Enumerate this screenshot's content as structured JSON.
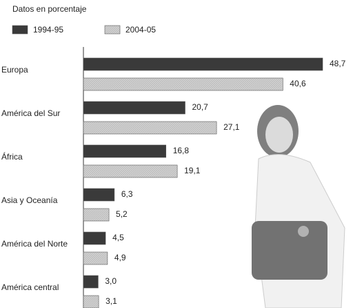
{
  "chart_data": {
    "type": "hbar",
    "subtitle": "Datos en porcentaje",
    "categories": [
      "Europa",
      "América del Sur",
      "África",
      "Asia y Oceanía",
      "América del Norte",
      "América central"
    ],
    "series": [
      {
        "name": "1994-95",
        "color": "#3a3a3a",
        "values": [
          48.7,
          20.7,
          16.8,
          6.3,
          4.5,
          3.0
        ],
        "value_labels": [
          "48,7",
          "20,7",
          "16,8",
          "6,3",
          "4,5",
          "3,0"
        ]
      },
      {
        "name": "2004-05",
        "color": "#c9c9c9",
        "values": [
          40.6,
          27.1,
          19.1,
          5.2,
          4.9,
          3.1
        ],
        "value_labels": [
          "40,6",
          "27,1",
          "19,1",
          "5,2",
          "4,9",
          "3,1"
        ]
      }
    ]
  }
}
